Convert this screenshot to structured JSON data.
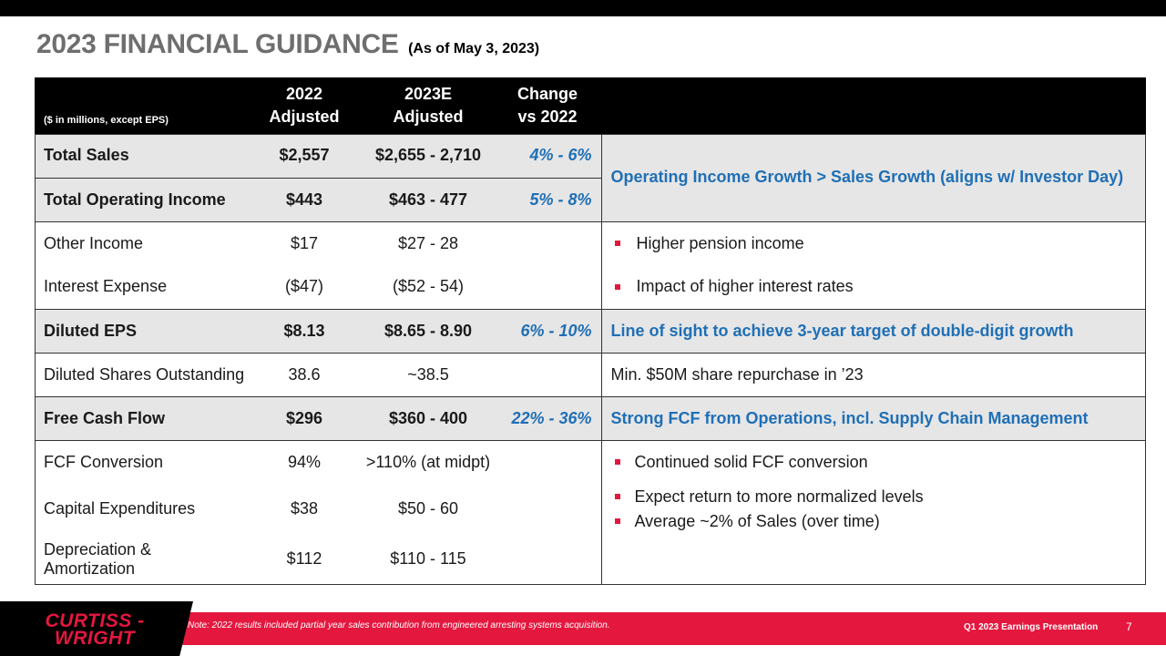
{
  "slide": {
    "title": "2023 FINANCIAL GUIDANCE",
    "subtitle": "(As of May 3, 2023)"
  },
  "table": {
    "header": {
      "units": "($ in millions, except EPS)",
      "col2022": "2022\nAdjusted",
      "col2023": "2023E\nAdjusted",
      "colChange": "Change\nvs 2022"
    },
    "rows": {
      "total_sales": {
        "label": "Total Sales",
        "v2022": "$2,557",
        "v2023": "$2,655 - 2,710",
        "change": "4% - 6%"
      },
      "total_oi": {
        "label": "Total Operating Income",
        "v2022": "$443",
        "v2023": "$463 - 477",
        "change": "5% - 8%"
      },
      "sales_oi_comment": "Operating Income Growth > Sales Growth (aligns w/ Investor Day)",
      "other_income": {
        "label": "Other Income",
        "v2022": "$17",
        "v2023": "$27 - 28",
        "comment": "Higher pension income"
      },
      "interest_expense": {
        "label": "Interest Expense",
        "v2022": "($47)",
        "v2023": "($52 - 54)",
        "comment": "Impact of higher interest rates"
      },
      "diluted_eps": {
        "label": "Diluted EPS",
        "v2022": "$8.13",
        "v2023": "$8.65 - 8.90",
        "change": "6% - 10%",
        "comment": "Line of sight to achieve 3-year target of double-digit growth"
      },
      "shares": {
        "label": "Diluted Shares Outstanding",
        "v2022": "38.6",
        "v2023": "~38.5",
        "comment": "Min. $50M share repurchase in ’23"
      },
      "fcf": {
        "label": "Free Cash Flow",
        "v2022": "$296",
        "v2023": "$360 - 400",
        "change": "22% - 36%",
        "comment": "Strong FCF from Operations, incl. Supply Chain Management"
      },
      "fcf_conv": {
        "label": "FCF Conversion",
        "v2022": "94%",
        "v2023": ">110% (at midpt)",
        "comment": "Continued solid FCF conversion"
      },
      "capex": {
        "label": "Capital Expenditures",
        "v2022": "$38",
        "v2023": "$50 - 60",
        "comment1": "Expect return to more normalized levels",
        "comment2": "Average ~2% of Sales (over time)"
      },
      "da": {
        "label": "Depreciation & Amortization",
        "v2022": "$112",
        "v2023": "$110 - 115"
      }
    }
  },
  "footer": {
    "logo": "CURTISS -\nWRIGHT",
    "note": "Note: 2022 results included partial year sales contribution from engineered  arresting systems acquisition.",
    "presentation": "Q1 2023 Earnings Presentation",
    "page": "7"
  },
  "colors": {
    "accent": "#e4173e",
    "blue": "#1f6fb5",
    "gray_row": "#e6e6e6",
    "header": "#000000"
  }
}
